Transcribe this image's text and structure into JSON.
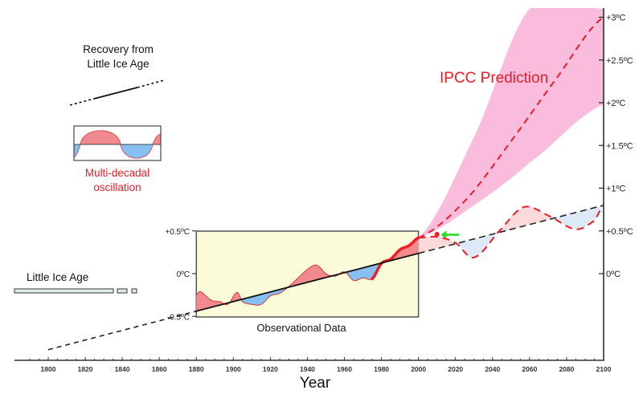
{
  "chart_data": {
    "type": "line",
    "xlabel": "Year",
    "x_ticks": [
      1800,
      1820,
      1840,
      1860,
      1880,
      1900,
      1920,
      1940,
      1960,
      1980,
      2000,
      2020,
      2040,
      2060,
      2080,
      2100
    ],
    "xlim": [
      1800,
      2100
    ],
    "right_axis_ticks": [
      "+3ºC",
      "+2.5ºC",
      "+2ºC",
      "+1.5ºC",
      "+1ºC",
      "+0.5ºC",
      "0ºC"
    ],
    "right_axis_values": [
      3,
      2.5,
      2,
      1.5,
      1,
      0.5,
      0
    ],
    "inset_axis_ticks": [
      "+0.5ºC",
      "0ºC",
      "-0.5ºC"
    ],
    "inset_axis_values": [
      0.5,
      0,
      -0.5
    ],
    "inset_label": "Observational Data",
    "trend": {
      "x": [
        1800,
        2100
      ],
      "y": [
        -0.89,
        0.8
      ]
    },
    "observational": {
      "x": [
        1880,
        1882,
        1888,
        1893,
        1897,
        1902,
        1905,
        1910,
        1915,
        1920,
        1925,
        1930,
        1935,
        1940,
        1945,
        1950,
        1955,
        1960,
        1965,
        1970,
        1975,
        1980,
        1985,
        1990,
        1995,
        2000
      ],
      "y": [
        -0.25,
        -0.21,
        -0.31,
        -0.33,
        -0.36,
        -0.22,
        -0.33,
        -0.36,
        -0.36,
        -0.26,
        -0.23,
        -0.15,
        -0.05,
        0.05,
        0.1,
        0,
        -0.03,
        0.02,
        -0.08,
        -0.05,
        -0.06,
        0.12,
        0.17,
        0.28,
        0.33,
        0.42
      ]
    },
    "oscillation_forecast": {
      "x": [
        2000,
        2010,
        2020,
        2030,
        2045,
        2057,
        2070,
        2085,
        2095,
        2100
      ],
      "y": [
        0.42,
        0.43,
        0.36,
        0.19,
        0.53,
        0.78,
        0.68,
        0.52,
        0.62,
        0.8
      ]
    },
    "ipcc_prediction": {
      "name": "IPCC Prediction",
      "x": [
        2000,
        2025,
        2050,
        2075,
        2100
      ],
      "y": [
        0.42,
        0.85,
        1.55,
        2.3,
        3.0
      ]
    },
    "ipcc_band": {
      "x": [
        2000,
        2030,
        2060,
        2100
      ],
      "upper": [
        0.42,
        1.6,
        3.1,
        3.1
      ],
      "lower": [
        0.42,
        0.8,
        1.3,
        1.98
      ]
    },
    "observed_2010_point": {
      "x": 2010,
      "y": 0.46
    },
    "annotations": {
      "recovery": [
        "Recovery from",
        "Little  Ice Age"
      ],
      "oscillation": [
        "Multi-decadal",
        "oscillation"
      ],
      "little_ice_age": "Little Ice Age"
    },
    "colors": {
      "warm_fill": "#f08a8e",
      "cool_fill": "#86c0f0",
      "forecast_warm_fill": "#fcdadc",
      "forecast_cool_fill": "#dde9f7",
      "ipcc_band": "#f9bcdc",
      "red_line": "#ee1c25",
      "inset_bg": "#fbfbd9",
      "arrow": "#22dd22"
    }
  }
}
